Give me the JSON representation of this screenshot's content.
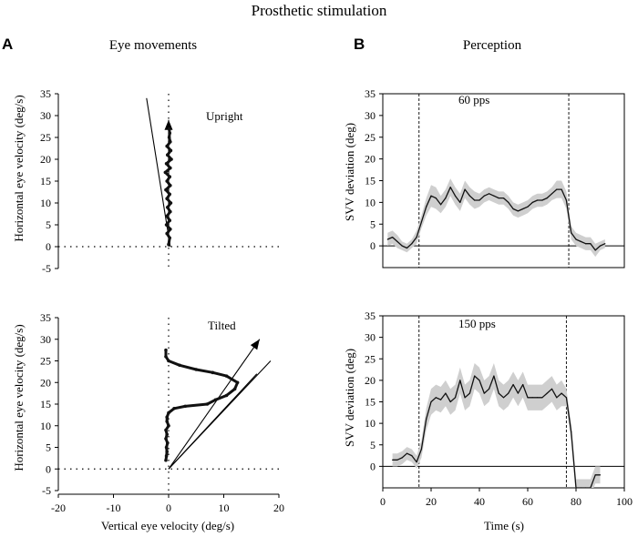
{
  "figure_title": "Prosthetic stimulation",
  "panel_a": {
    "letter": "A",
    "header": "Eye movements"
  },
  "panel_b": {
    "letter": "B",
    "header": "Perception"
  },
  "chart_data": [
    {
      "id": "upright",
      "type": "line",
      "title": "Upright",
      "xlabel": "",
      "ylabel": "Horizontal eye velocity (deg/s)",
      "xlim": [
        -20,
        20
      ],
      "ylim": [
        -5,
        35
      ],
      "yticks": [
        "-5",
        "0",
        "5",
        "10",
        "15",
        "20",
        "25",
        "30",
        "35"
      ],
      "trace": [
        [
          0,
          0.5
        ],
        [
          0.2,
          2
        ],
        [
          -0.3,
          3
        ],
        [
          0.3,
          4
        ],
        [
          -0.4,
          5
        ],
        [
          0.2,
          6
        ],
        [
          -0.3,
          7
        ],
        [
          0.3,
          8
        ],
        [
          -0.2,
          9
        ],
        [
          0.4,
          10
        ],
        [
          -0.3,
          11
        ],
        [
          0.2,
          12
        ],
        [
          -0.5,
          13
        ],
        [
          0.3,
          14
        ],
        [
          -0.3,
          15
        ],
        [
          0.2,
          16
        ],
        [
          -0.6,
          17
        ],
        [
          0.3,
          18
        ],
        [
          -0.4,
          19
        ],
        [
          0.5,
          20
        ],
        [
          -0.2,
          21
        ],
        [
          0.4,
          22
        ],
        [
          -0.3,
          23
        ],
        [
          0.3,
          24
        ],
        [
          0.1,
          25
        ],
        [
          0.2,
          26
        ],
        [
          0.1,
          27
        ]
      ],
      "fit_line": [
        [
          -4,
          34
        ],
        [
          0.3,
          0
        ]
      ],
      "arrow": [
        [
          0,
          0
        ],
        [
          0,
          29
        ]
      ]
    },
    {
      "id": "tilted",
      "type": "line",
      "title": "Tilted",
      "xlabel": "Vertical eye velocity (deg/s)",
      "ylabel": "Horizontal eye velocity (deg/s)",
      "xlim": [
        -20,
        20
      ],
      "ylim": [
        -5,
        35
      ],
      "xticks": [
        "-20",
        "-10",
        "0",
        "10",
        "20"
      ],
      "yticks": [
        "-5",
        "0",
        "5",
        "10",
        "15",
        "20",
        "25",
        "30",
        "35"
      ],
      "trace": [
        [
          -0.5,
          27.5
        ],
        [
          -0.5,
          26
        ],
        [
          0,
          25
        ],
        [
          2,
          24
        ],
        [
          5,
          23
        ],
        [
          8,
          22.3
        ],
        [
          10.5,
          21.5
        ],
        [
          12.5,
          20
        ],
        [
          12,
          18.5
        ],
        [
          10.5,
          17
        ],
        [
          8.5,
          16
        ],
        [
          7,
          15
        ],
        [
          3,
          14.5
        ],
        [
          1,
          14
        ],
        [
          0,
          13
        ],
        [
          -0.3,
          12
        ],
        [
          -0.3,
          11
        ],
        [
          0,
          10
        ],
        [
          -0.5,
          9
        ],
        [
          -0.3,
          8
        ],
        [
          -0.5,
          7
        ],
        [
          -0.2,
          6
        ],
        [
          -0.4,
          5
        ],
        [
          -0.3,
          4
        ],
        [
          -0.4,
          3
        ],
        [
          -0.5,
          2
        ]
      ],
      "fit_lines": [
        [
          [
            0,
            0
          ],
          [
            18.5,
            25
          ]
        ],
        [
          [
            0,
            0
          ],
          [
            16,
            22
          ]
        ]
      ],
      "arrow": [
        [
          0,
          0
        ],
        [
          16.5,
          30
        ]
      ]
    },
    {
      "id": "pps60",
      "type": "line",
      "title": "60 pps",
      "xlabel": "",
      "ylabel": "SVV deviation (deg)",
      "xlim": [
        0,
        100
      ],
      "ylim": [
        -5,
        35
      ],
      "yticks": [
        "0",
        "5",
        "10",
        "15",
        "20",
        "25",
        "30",
        "35"
      ],
      "stim_on": 15,
      "stim_off": 77,
      "series": [
        {
          "name": "mean",
          "x": [
            2,
            4,
            6,
            8,
            10,
            12,
            14,
            16,
            18,
            20,
            22,
            24,
            26,
            28,
            30,
            32,
            34,
            36,
            38,
            40,
            42,
            44,
            46,
            48,
            50,
            52,
            54,
            56,
            58,
            60,
            62,
            64,
            66,
            68,
            70,
            72,
            74,
            76,
            78,
            80,
            82,
            84,
            86,
            88,
            90,
            92
          ],
          "values": [
            1.5,
            2,
            1,
            0,
            -0.5,
            0.5,
            2,
            5.5,
            9,
            11.5,
            11,
            9.5,
            11,
            13.5,
            11.5,
            10,
            13,
            11.5,
            10.5,
            10.5,
            11.5,
            12,
            11.5,
            11,
            11,
            10,
            8.5,
            8,
            8.5,
            9,
            10,
            10.5,
            10.5,
            11,
            12,
            13,
            13,
            10.5,
            3,
            1.5,
            1,
            0.5,
            0.5,
            -1,
            0,
            0.5
          ],
          "sd": [
            1.5,
            1.5,
            1.5,
            1,
            1,
            1,
            1.5,
            1.5,
            2,
            2.5,
            2.5,
            2,
            2,
            2,
            2,
            2,
            2,
            2,
            2,
            1.5,
            1.5,
            1.5,
            1.5,
            1.5,
            1.5,
            1.5,
            1.5,
            1.5,
            1.5,
            1.5,
            1.5,
            1.5,
            1.5,
            1.5,
            1.5,
            2,
            2,
            2,
            1.5,
            1.5,
            1.5,
            1.5,
            1.5,
            1.5,
            1,
            1
          ]
        }
      ]
    },
    {
      "id": "pps150",
      "type": "line",
      "title": "150 pps",
      "xlabel": "Time (s)",
      "ylabel": "SVV deviation (deg)",
      "xlim": [
        0,
        100
      ],
      "ylim": [
        -5,
        35
      ],
      "xticks": [
        "0",
        "20",
        "40",
        "60",
        "80",
        "100"
      ],
      "yticks": [
        "0",
        "5",
        "10",
        "15",
        "20",
        "25",
        "30",
        "35"
      ],
      "stim_on": 15,
      "stim_off": 76,
      "series": [
        {
          "name": "mean",
          "x": [
            4,
            6,
            8,
            10,
            12,
            14,
            16,
            18,
            20,
            22,
            24,
            26,
            28,
            30,
            32,
            34,
            36,
            38,
            40,
            42,
            44,
            46,
            48,
            50,
            52,
            54,
            56,
            58,
            60,
            62,
            64,
            66,
            68,
            70,
            72,
            74,
            76,
            78,
            80,
            82,
            84,
            86,
            88,
            90
          ],
          "values": [
            1.5,
            1.5,
            2,
            3,
            2.5,
            1,
            4,
            11,
            15,
            16,
            15.5,
            17,
            15,
            16,
            20,
            16,
            17,
            21,
            20,
            17,
            18,
            21,
            17,
            16,
            17,
            19,
            17,
            19,
            16,
            16,
            16,
            16,
            17,
            18,
            16,
            17,
            16,
            8,
            -5,
            -5,
            -5,
            -5,
            -2,
            -2
          ],
          "sd": [
            1.5,
            1.5,
            1.5,
            1.5,
            1.5,
            1.5,
            2,
            2.5,
            3,
            3,
            3,
            3,
            3,
            3,
            3,
            3,
            3,
            3,
            3,
            3,
            3,
            3,
            3,
            3,
            3,
            3,
            3,
            3,
            3,
            3,
            3,
            3,
            3,
            3,
            3,
            3,
            2,
            2,
            2,
            2,
            2,
            2,
            2,
            2
          ]
        }
      ]
    }
  ]
}
